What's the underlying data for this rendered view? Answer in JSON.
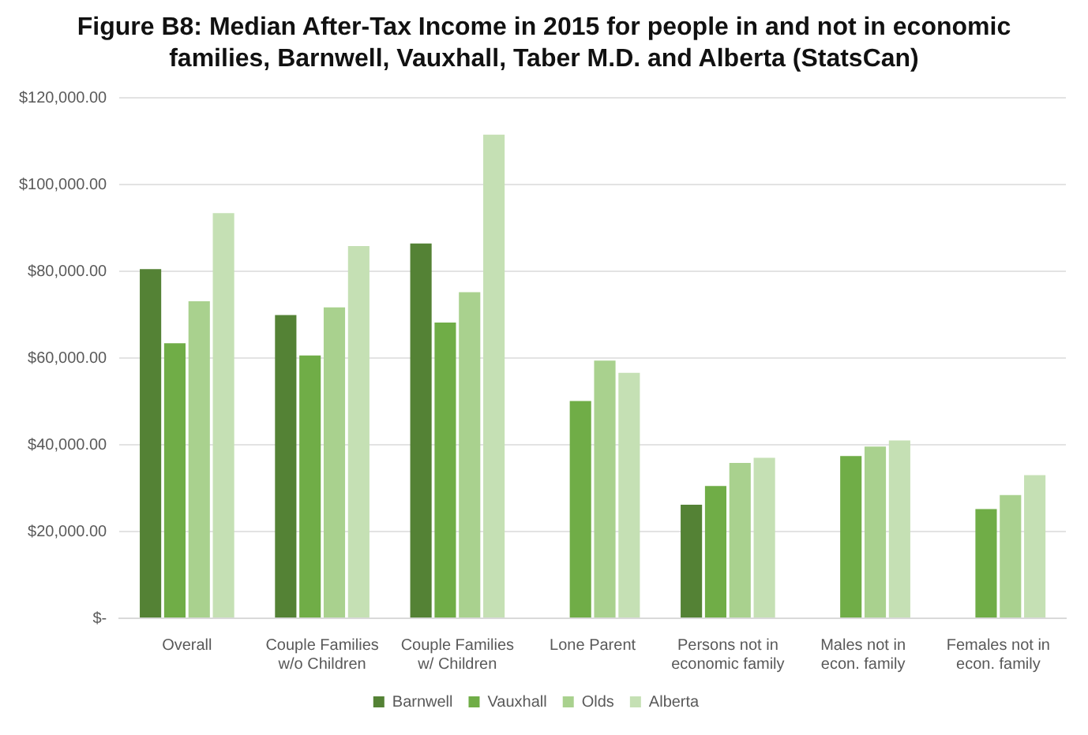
{
  "chart_data": {
    "type": "bar",
    "title": "Figure B8: Median After-Tax Income in 2015 for people in and not in economic families, Barnwell, Vauxhall, Taber M.D. and Alberta (StatsCan)",
    "categories": [
      "Overall",
      "Couple Families w/o Children",
      "Couple Families w/ Children",
      "Lone Parent",
      "Persons not in economic family",
      "Males not in econ. family",
      "Females not in econ. family"
    ],
    "series": [
      {
        "name": "Barnwell",
        "color": "#548235",
        "values": [
          80500,
          69900,
          86400,
          null,
          26200,
          null,
          null
        ]
      },
      {
        "name": "Vauxhall",
        "color": "#70ad47",
        "values": [
          63400,
          60600,
          68200,
          50100,
          30500,
          37400,
          25200
        ]
      },
      {
        "name": "Olds",
        "color": "#a9d18e",
        "values": [
          73100,
          71700,
          75200,
          59400,
          35800,
          39600,
          28400
        ]
      },
      {
        "name": "Alberta",
        "color": "#c5e0b4",
        "values": [
          93400,
          85800,
          111500,
          56600,
          37000,
          41000,
          33000
        ]
      }
    ],
    "ylim": [
      0,
      120000
    ],
    "yticks": [
      {
        "value": 0,
        "label": "$-"
      },
      {
        "value": 20000,
        "label": "$20,000.00"
      },
      {
        "value": 40000,
        "label": "$40,000.00"
      },
      {
        "value": 60000,
        "label": "$60,000.00"
      },
      {
        "value": 80000,
        "label": "$80,000.00"
      },
      {
        "value": 100000,
        "label": "$100,000.00"
      },
      {
        "value": 120000,
        "label": "$120,000.00"
      }
    ],
    "grid": "y",
    "legend": "bottom"
  }
}
